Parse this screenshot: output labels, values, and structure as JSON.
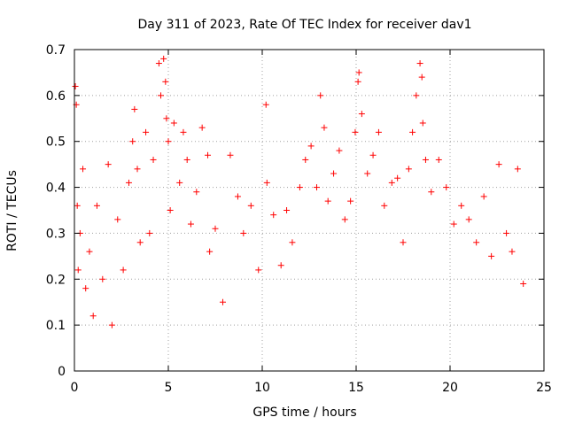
{
  "chart_data": {
    "type": "scatter",
    "title": "Day 311 of 2023, Rate Of TEC Index for receiver dav1",
    "xlabel": "GPS time / hours",
    "ylabel": "ROTI / TECUs",
    "xlim": [
      0,
      25
    ],
    "ylim": [
      0,
      0.7
    ],
    "xticks": [
      0,
      5,
      10,
      15,
      20,
      25
    ],
    "yticks": [
      0,
      0.1,
      0.2,
      0.3,
      0.4,
      0.5,
      0.6,
      0.7
    ],
    "xtick_labels": [
      "0",
      "5",
      "10",
      "15",
      "20",
      "25"
    ],
    "ytick_labels": [
      "0",
      "0.1",
      "0.2",
      "0.3",
      "0.4",
      "0.5",
      "0.6",
      "0.7"
    ],
    "grid": true,
    "marker": "+",
    "color": "#ff0000",
    "series": [
      {
        "x": [
          0.05,
          0.1,
          0.15,
          0.2,
          0.3,
          0.45,
          0.6,
          0.8,
          1.0,
          1.2,
          1.5,
          1.8,
          2.0,
          2.3,
          2.6,
          2.9,
          3.1,
          3.2,
          3.35,
          3.5,
          3.8,
          4.0,
          4.2,
          4.5,
          4.6,
          4.75,
          4.85,
          4.9,
          5.0,
          5.1,
          5.3,
          5.6,
          5.8,
          6.0,
          6.2,
          6.5,
          6.8,
          7.1,
          7.2,
          7.5,
          7.9,
          8.3,
          8.7,
          9.0,
          9.4,
          9.8,
          10.2,
          10.25,
          10.6,
          11.0,
          11.3,
          11.6,
          12.0,
          12.3,
          12.6,
          12.9,
          13.1,
          13.3,
          13.5,
          13.8,
          14.1,
          14.4,
          14.7,
          14.95,
          15.1,
          15.15,
          15.3,
          15.6,
          15.9,
          16.2,
          16.5,
          16.9,
          17.2,
          17.5,
          17.8,
          18.0,
          18.2,
          18.4,
          18.5,
          18.55,
          18.7,
          19.0,
          19.4,
          19.8,
          20.2,
          20.6,
          21.0,
          21.4,
          21.8,
          22.2,
          22.6,
          23.0,
          23.3,
          23.6,
          23.9
        ],
        "y": [
          0.62,
          0.58,
          0.36,
          0.22,
          0.3,
          0.44,
          0.18,
          0.26,
          0.12,
          0.36,
          0.2,
          0.45,
          0.1,
          0.33,
          0.22,
          0.41,
          0.5,
          0.57,
          0.44,
          0.28,
          0.52,
          0.3,
          0.46,
          0.67,
          0.6,
          0.68,
          0.63,
          0.55,
          0.5,
          0.35,
          0.54,
          0.41,
          0.52,
          0.46,
          0.32,
          0.39,
          0.53,
          0.47,
          0.26,
          0.31,
          0.15,
          0.47,
          0.38,
          0.3,
          0.36,
          0.22,
          0.58,
          0.41,
          0.34,
          0.23,
          0.35,
          0.28,
          0.4,
          0.46,
          0.49,
          0.4,
          0.6,
          0.53,
          0.37,
          0.43,
          0.48,
          0.33,
          0.37,
          0.52,
          0.63,
          0.65,
          0.56,
          0.43,
          0.47,
          0.52,
          0.36,
          0.41,
          0.42,
          0.28,
          0.44,
          0.52,
          0.6,
          0.67,
          0.64,
          0.54,
          0.46,
          0.39,
          0.46,
          0.4,
          0.32,
          0.36,
          0.33,
          0.28,
          0.38,
          0.25,
          0.45,
          0.3,
          0.26,
          0.44,
          0.19
        ]
      }
    ]
  }
}
